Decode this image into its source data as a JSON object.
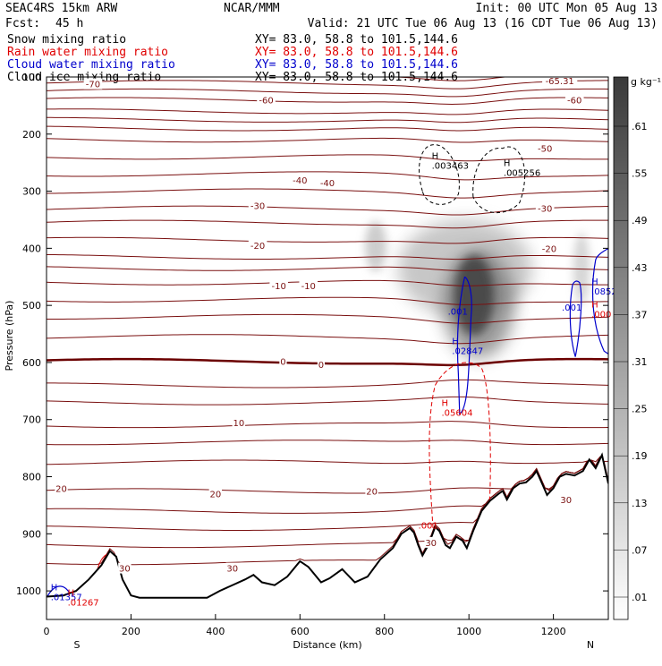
{
  "header": {
    "model": "SEAC4RS 15km ARW",
    "org": "NCAR/MMM",
    "init": "Init: 00 UTC Mon 05 Aug 13",
    "fcst_label": "Fcst:",
    "fcst_value": "45 h",
    "valid": "Valid: 21 UTC Tue 06 Aug 13 (16 CDT Tue 06 Aug 13)"
  },
  "fields": [
    {
      "name": "Snow mixing ratio",
      "xy": "XY=  83.0, 58.8 to 101.5,144.6",
      "color": "#000000"
    },
    {
      "name": "Rain water mixing ratio",
      "xy": "XY=  83.0, 58.8 to 101.5,144.6",
      "color": "#e00000"
    },
    {
      "name": "Cloud water mixing ratio",
      "xy": "XY=  83.0, 58.8 to 101.5,144.6",
      "color": "#0000cc"
    },
    {
      "name": "Cloud ice mixing ratio",
      "xy": "XY=  83.0, 58.8 to 101.5,144.6",
      "color": "#000000"
    }
  ],
  "colorbar": {
    "unit": "g kg⁻¹",
    "labels": [
      ".61",
      ".55",
      ".49",
      ".43",
      ".37",
      ".31",
      ".25",
      ".19",
      ".13",
      ".07",
      ".01"
    ]
  },
  "chart_data": {
    "type": "heatmap",
    "xlabel": "Distance (km)",
    "ylabel": "Pressure (hPa)",
    "xlim": [
      0,
      1330
    ],
    "ylim": [
      1050,
      100
    ],
    "y_log": false,
    "x_ticks": [
      "0",
      "200",
      "400",
      "600",
      "800",
      "1000",
      "1200"
    ],
    "y_ticks": [
      "100",
      "200",
      "300",
      "400",
      "500",
      "600",
      "700",
      "800",
      "900",
      "1000"
    ],
    "x_endpoints": {
      "left": "S",
      "right": "N"
    },
    "temperature_isotherms_C": [
      -70,
      -60,
      -50,
      -40,
      -30,
      -20,
      -10,
      0,
      10,
      20,
      30
    ],
    "isotherm_labels": [
      {
        "text": "-70",
        "x": 110,
        "p": 112
      },
      {
        "text": "-65.31",
        "x": 1215,
        "p": 106
      },
      {
        "text": "-60",
        "x": 520,
        "p": 140
      },
      {
        "text": "-60",
        "x": 1250,
        "p": 140
      },
      {
        "text": "-50",
        "x": 1180,
        "p": 225
      },
      {
        "text": "-40",
        "x": 600,
        "p": 280
      },
      {
        "text": "-40",
        "x": 665,
        "p": 285
      },
      {
        "text": "-30",
        "x": 500,
        "p": 325
      },
      {
        "text": "-30",
        "x": 1180,
        "p": 330
      },
      {
        "text": "-20",
        "x": 500,
        "p": 395
      },
      {
        "text": "-20",
        "x": 1190,
        "p": 400
      },
      {
        "text": "-10",
        "x": 550,
        "p": 465
      },
      {
        "text": "-10",
        "x": 620,
        "p": 465
      },
      {
        "text": "0",
        "x": 560,
        "p": 598
      },
      {
        "text": "0",
        "x": 650,
        "p": 603
      },
      {
        "text": "10",
        "x": 455,
        "p": 705
      },
      {
        "text": "20",
        "x": 35,
        "p": 820
      },
      {
        "text": "20",
        "x": 400,
        "p": 830
      },
      {
        "text": "20",
        "x": 770,
        "p": 825
      },
      {
        "text": "30",
        "x": 185,
        "p": 960
      },
      {
        "text": "30",
        "x": 440,
        "p": 960
      },
      {
        "text": "30",
        "x": 1230,
        "p": 840
      },
      {
        "text": "30",
        "x": 910,
        "p": 915
      }
    ],
    "terrain": [
      [
        0,
        1010
      ],
      [
        40,
        1008
      ],
      [
        70,
        1000
      ],
      [
        100,
        980
      ],
      [
        130,
        955
      ],
      [
        150,
        930
      ],
      [
        165,
        940
      ],
      [
        180,
        980
      ],
      [
        200,
        1008
      ],
      [
        220,
        1012
      ],
      [
        260,
        1012
      ],
      [
        300,
        1012
      ],
      [
        350,
        1012
      ],
      [
        380,
        1012
      ],
      [
        410,
        1000
      ],
      [
        440,
        990
      ],
      [
        470,
        980
      ],
      [
        490,
        972
      ],
      [
        510,
        985
      ],
      [
        540,
        990
      ],
      [
        570,
        975
      ],
      [
        600,
        948
      ],
      [
        620,
        958
      ],
      [
        650,
        985
      ],
      [
        670,
        978
      ],
      [
        700,
        962
      ],
      [
        730,
        985
      ],
      [
        760,
        975
      ],
      [
        790,
        945
      ],
      [
        820,
        925
      ],
      [
        840,
        900
      ],
      [
        860,
        890
      ],
      [
        870,
        898
      ],
      [
        880,
        920
      ],
      [
        890,
        938
      ],
      [
        905,
        918
      ],
      [
        920,
        888
      ],
      [
        930,
        895
      ],
      [
        945,
        920
      ],
      [
        955,
        925
      ],
      [
        970,
        905
      ],
      [
        985,
        912
      ],
      [
        995,
        925
      ],
      [
        1010,
        895
      ],
      [
        1030,
        860
      ],
      [
        1050,
        842
      ],
      [
        1070,
        830
      ],
      [
        1080,
        825
      ],
      [
        1090,
        840
      ],
      [
        1105,
        820
      ],
      [
        1120,
        812
      ],
      [
        1135,
        810
      ],
      [
        1150,
        800
      ],
      [
        1160,
        790
      ],
      [
        1175,
        815
      ],
      [
        1185,
        832
      ],
      [
        1200,
        820
      ],
      [
        1215,
        800
      ],
      [
        1230,
        795
      ],
      [
        1250,
        798
      ],
      [
        1270,
        790
      ],
      [
        1285,
        770
      ],
      [
        1300,
        785
      ],
      [
        1315,
        762
      ],
      [
        1330,
        812
      ]
    ],
    "snow_max": 0.61,
    "contour_labels": [
      {
        "field": "Cloud ice mixing ratio",
        "marker": "H",
        "value": ".003463",
        "x": 912,
        "p": 250
      },
      {
        "field": "Cloud ice mixing ratio",
        "marker": "H",
        "value": ".005256",
        "x": 1082,
        "p": 262
      },
      {
        "field": "Cloud water mixing ratio",
        "marker": "H",
        "value": ".02847",
        "x": 960,
        "p": 574
      },
      {
        "field": "Cloud water mixing ratio",
        "value": ".001",
        "x": 950,
        "p": 505
      },
      {
        "field": "Cloud water mixing ratio",
        "value": ".001",
        "x": 1220,
        "p": 498
      },
      {
        "field": "Cloud water mixing ratio",
        "marker": "H",
        "value": ".0852",
        "x": 1290,
        "p": 470
      },
      {
        "field": "Cloud water mixing ratio",
        "marker": "H",
        "value": ".01357",
        "x": 10,
        "p": 1005
      },
      {
        "field": "Rain water mixing ratio",
        "marker": "H",
        "value": ".05604",
        "x": 935,
        "p": 682
      },
      {
        "field": "Rain water mixing ratio",
        "marker": "H",
        "value": ".000",
        "x": 1290,
        "p": 510
      },
      {
        "field": "Rain water mixing ratio",
        "value": ".001",
        "x": 880,
        "p": 880
      },
      {
        "field": "Rain water mixing ratio",
        "marker": "H",
        "value": ".01267",
        "x": 50,
        "p": 1015
      }
    ]
  }
}
